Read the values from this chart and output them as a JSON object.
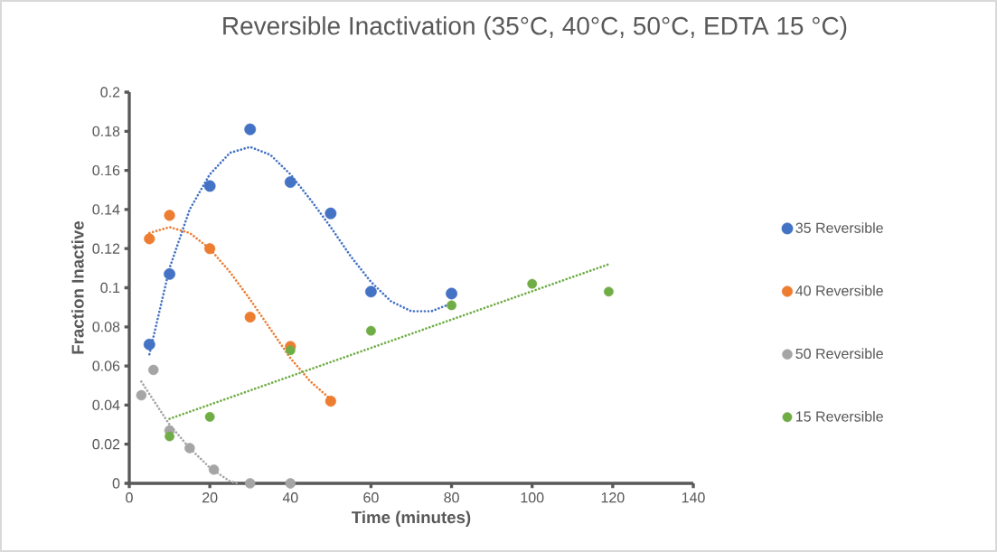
{
  "chart_data": {
    "type": "scatter",
    "title": "Reversible Inactivation (35°C, 40°C, 50°C, EDTA 15 °C)",
    "xlabel": "Time (minutes)",
    "ylabel": "Fraction Inactive",
    "xlim": [
      0,
      140
    ],
    "xticks": [
      0,
      20,
      40,
      60,
      80,
      100,
      120,
      140
    ],
    "ylim": [
      0,
      0.2
    ],
    "yticks": [
      0,
      0.02,
      0.04,
      0.06,
      0.08,
      0.1,
      0.12,
      0.14,
      0.16,
      0.18,
      0.2
    ],
    "legend": "right",
    "marker": "circle",
    "grid": false,
    "series": [
      {
        "name": "35 Reversible",
        "color": "#4472c4",
        "x": [
          5,
          10,
          20,
          30,
          40,
          50,
          60,
          80
        ],
        "values": [
          0.071,
          0.107,
          0.152,
          0.181,
          0.154,
          0.138,
          0.098,
          0.097
        ]
      },
      {
        "name": "40 Reversible",
        "color": "#ed7d31",
        "x": [
          5,
          10,
          20,
          30,
          40,
          50
        ],
        "values": [
          0.125,
          0.137,
          0.12,
          0.085,
          0.07,
          0.042
        ]
      },
      {
        "name": "50 Reversible",
        "color": "#a5a5a5",
        "x": [
          3,
          6,
          10,
          15,
          21,
          30,
          40
        ],
        "values": [
          0.045,
          0.058,
          0.027,
          0.018,
          0.007,
          0,
          0
        ]
      },
      {
        "name": "15 Reversible",
        "color": "#70ad47",
        "x": [
          10,
          20,
          40,
          60,
          80,
          100,
          119
        ],
        "values": [
          0.024,
          0.034,
          0.068,
          0.078,
          0.091,
          0.102,
          0.098
        ]
      },
      {
        "type": "line",
        "line_style": "dotted",
        "marker": "none",
        "color": "#4472c4",
        "x": [
          5,
          10,
          15,
          20,
          25,
          30,
          35,
          40,
          45,
          50,
          55,
          60,
          65,
          70,
          75,
          80
        ],
        "values": [
          0.066,
          0.11,
          0.14,
          0.158,
          0.169,
          0.172,
          0.168,
          0.158,
          0.145,
          0.131,
          0.116,
          0.103,
          0.093,
          0.088,
          0.088,
          0.092
        ]
      },
      {
        "type": "line",
        "line_style": "dotted",
        "marker": "none",
        "color": "#ed7d31",
        "x": [
          5,
          10,
          15,
          20,
          25,
          30,
          35,
          40,
          45,
          50
        ],
        "values": [
          0.128,
          0.131,
          0.128,
          0.12,
          0.108,
          0.094,
          0.079,
          0.064,
          0.052,
          0.043
        ]
      },
      {
        "type": "line",
        "line_style": "dotted",
        "marker": "none",
        "color": "#a5a5a5",
        "x": [
          3,
          10,
          15,
          20,
          25,
          27
        ],
        "values": [
          0.052,
          0.03,
          0.018,
          0.008,
          0.001,
          0
        ]
      },
      {
        "type": "line",
        "line_style": "dotted",
        "marker": "none",
        "color": "#70ad47",
        "x": [
          10,
          119
        ],
        "values": [
          0.033,
          0.112
        ]
      }
    ]
  }
}
